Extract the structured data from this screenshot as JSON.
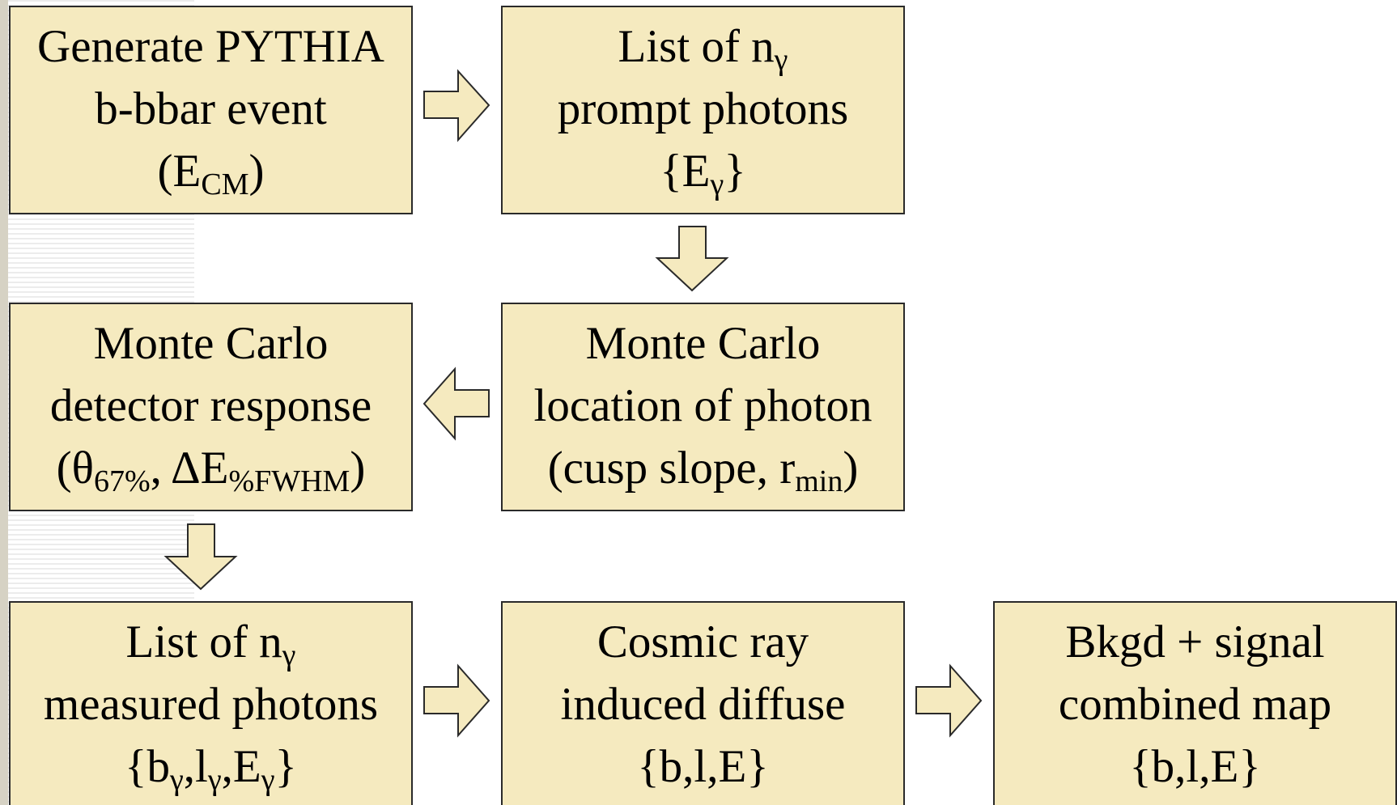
{
  "nodes": [
    {
      "lines": [
        [
          {
            "text": "Generate PYTHIA"
          }
        ],
        [
          {
            "text": "b-bbar event"
          }
        ],
        [
          {
            "text": "(E"
          },
          {
            "sub": "CM"
          },
          {
            "text": ")"
          }
        ]
      ]
    },
    {
      "lines": [
        [
          {
            "text": "List of n"
          },
          {
            "sub": "γ"
          }
        ],
        [
          {
            "text": "prompt photons"
          }
        ],
        [
          {
            "text": "{E"
          },
          {
            "sub": "γ"
          },
          {
            "text": "}"
          }
        ]
      ]
    },
    {
      "lines": [
        [
          {
            "text": "Monte Carlo"
          }
        ],
        [
          {
            "text": "location of photon"
          }
        ],
        [
          {
            "text": "(cusp slope, r"
          },
          {
            "sub": "min"
          },
          {
            "text": ")"
          }
        ]
      ]
    },
    {
      "lines": [
        [
          {
            "text": "Monte Carlo"
          }
        ],
        [
          {
            "text": "detector response"
          }
        ],
        [
          {
            "text": "(θ"
          },
          {
            "sub": "67%"
          },
          {
            "text": ", ΔE"
          },
          {
            "sub": "%FWHM"
          },
          {
            "text": ")"
          }
        ]
      ]
    },
    {
      "lines": [
        [
          {
            "text": "List of n"
          },
          {
            "sub": "γ"
          }
        ],
        [
          {
            "text": "measured photons"
          }
        ],
        [
          {
            "text": "{b"
          },
          {
            "sub": "γ"
          },
          {
            "text": ",l"
          },
          {
            "sub": "γ"
          },
          {
            "text": ",E"
          },
          {
            "sub": "γ"
          },
          {
            "text": "}"
          }
        ]
      ]
    },
    {
      "lines": [
        [
          {
            "text": "Cosmic ray"
          }
        ],
        [
          {
            "text": "induced diffuse"
          }
        ],
        [
          {
            "text": "{b,l,E}"
          }
        ]
      ]
    },
    {
      "lines": [
        [
          {
            "text": "Bkgd + signal"
          }
        ],
        [
          {
            "text": "combined map"
          }
        ],
        [
          {
            "text": "{b,l,E}"
          }
        ]
      ]
    }
  ]
}
